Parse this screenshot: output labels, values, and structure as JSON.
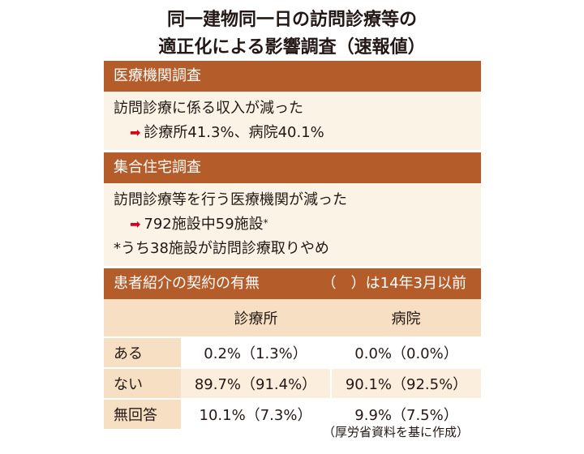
{
  "title": {
    "line1": "同一建物同一日の訪問診療等の",
    "line2": "適正化による影響調査（速報値）"
  },
  "section1": {
    "header": "医療機関調査",
    "line1": "訪問診療に係る収入が減った",
    "result": "診療所41.3%、病院40.1%"
  },
  "section2": {
    "header": "集合住宅調査",
    "line1": "訪問診療等を行う医療機関が減った",
    "result": "792施設中59施設",
    "result_mark": "*",
    "note": "*うち38施設が訪問診療取りやめ"
  },
  "section3": {
    "header": "患者紹介の契約の有無",
    "header_note": "（　）は14年3月以前",
    "columns": [
      "",
      "診療所",
      "病院"
    ],
    "rows": [
      {
        "label": "ある",
        "clinic": "0.2%（1.3%）",
        "hospital": "0.0%（0.0%）"
      },
      {
        "label": "ない",
        "clinic": "89.7%（91.4%）",
        "hospital": "90.1%（92.5%）"
      },
      {
        "label": "無回答",
        "clinic": "10.1%（7.3%）",
        "hospital": "9.9%（7.5%）"
      }
    ]
  },
  "footer": "（厚労省資料を基に作成）",
  "icons": {
    "arrow": "right-arrow-icon"
  },
  "colors": {
    "header_bg": "#b45c2a",
    "body_bg": "#fbf3e6",
    "label_bg": "#f6dfc2",
    "arrow": "#d7001a"
  }
}
